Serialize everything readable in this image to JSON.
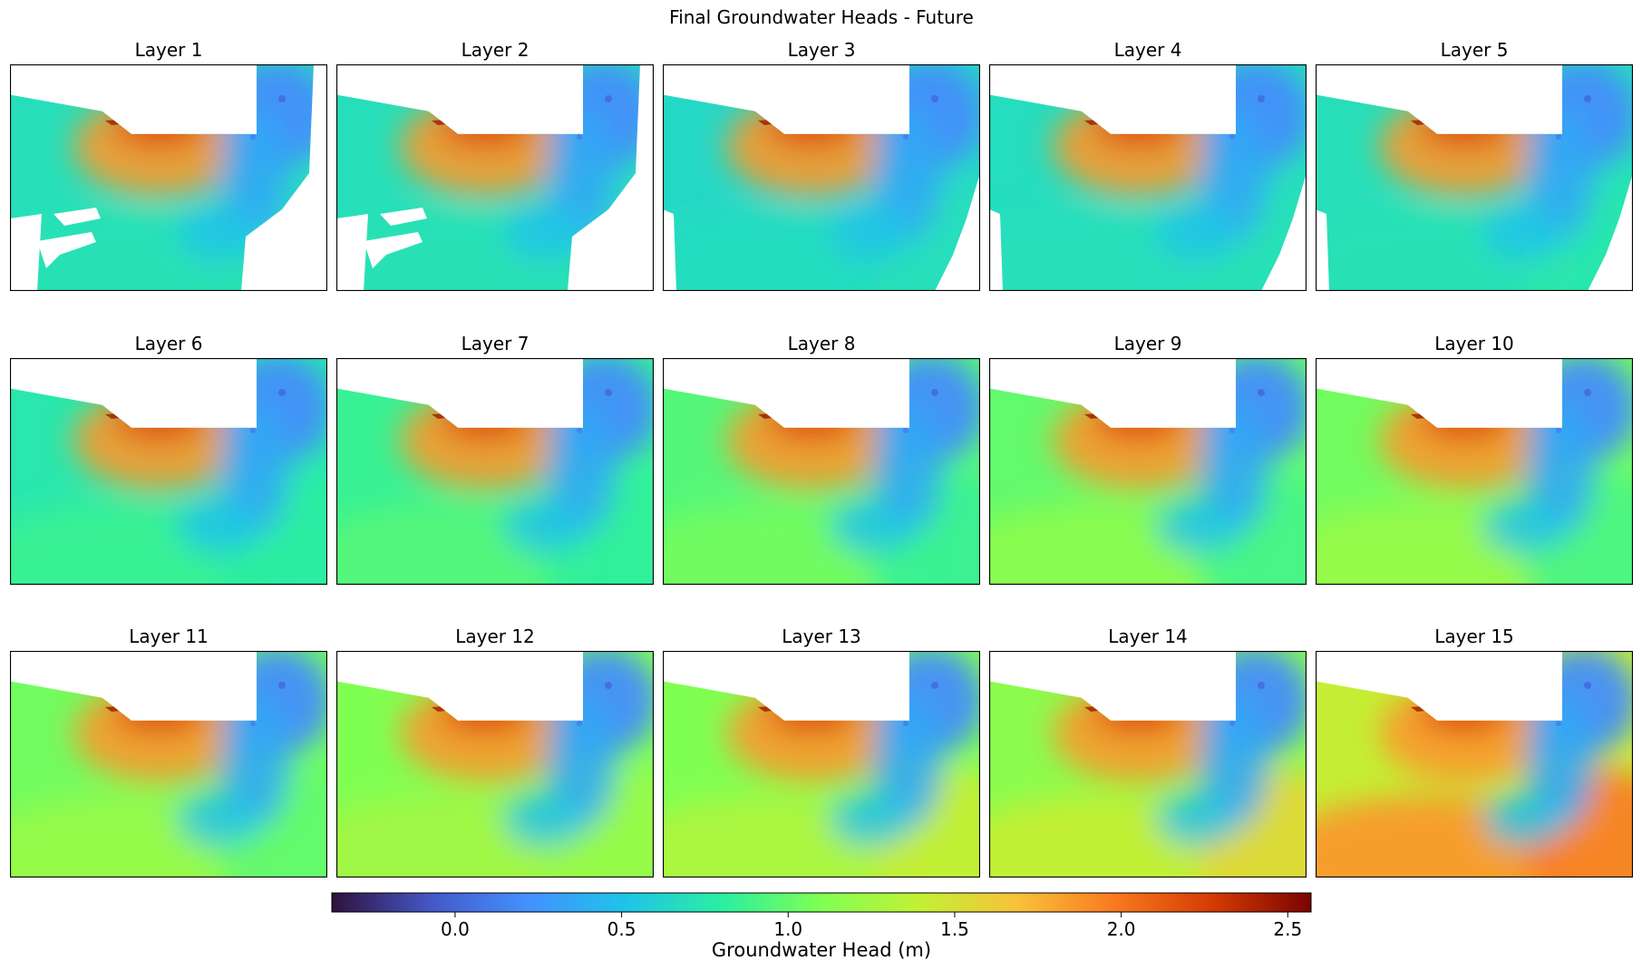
{
  "chart_data": {
    "type": "heatmap",
    "title": "Final Groundwater Heads - Future",
    "panels": [
      {
        "title": "Layer 1",
        "west_head": 0.7,
        "south_head": 0.72,
        "southeast_head": 0.72,
        "coverage": "sparse"
      },
      {
        "title": "Layer 2",
        "west_head": 0.7,
        "south_head": 0.72,
        "southeast_head": 0.72,
        "coverage": "sparse"
      },
      {
        "title": "Layer 3",
        "west_head": 0.65,
        "south_head": 0.68,
        "southeast_head": 0.7,
        "coverage": "partial"
      },
      {
        "title": "Layer 4",
        "west_head": 0.68,
        "south_head": 0.7,
        "southeast_head": 0.72,
        "coverage": "partial"
      },
      {
        "title": "Layer 5",
        "west_head": 0.7,
        "south_head": 0.72,
        "southeast_head": 0.75,
        "coverage": "partial"
      },
      {
        "title": "Layer 6",
        "west_head": 0.75,
        "south_head": 0.85,
        "southeast_head": 0.8,
        "coverage": "full"
      },
      {
        "title": "Layer 7",
        "west_head": 0.85,
        "south_head": 0.95,
        "southeast_head": 0.82,
        "coverage": "full"
      },
      {
        "title": "Layer 8",
        "west_head": 0.95,
        "south_head": 1.05,
        "southeast_head": 0.85,
        "coverage": "full"
      },
      {
        "title": "Layer 9",
        "west_head": 1.0,
        "south_head": 1.15,
        "southeast_head": 0.9,
        "coverage": "full"
      },
      {
        "title": "Layer 10",
        "west_head": 1.05,
        "south_head": 1.2,
        "southeast_head": 0.92,
        "coverage": "full"
      },
      {
        "title": "Layer 11",
        "west_head": 1.05,
        "south_head": 1.2,
        "southeast_head": 1.0,
        "coverage": "full"
      },
      {
        "title": "Layer 12",
        "west_head": 1.1,
        "south_head": 1.25,
        "southeast_head": 1.2,
        "coverage": "full"
      },
      {
        "title": "Layer 13",
        "west_head": 1.1,
        "south_head": 1.3,
        "southeast_head": 1.4,
        "coverage": "full"
      },
      {
        "title": "Layer 14",
        "west_head": 1.15,
        "south_head": 1.4,
        "southeast_head": 1.55,
        "coverage": "full"
      },
      {
        "title": "Layer 15",
        "west_head": 1.4,
        "south_head": 1.85,
        "southeast_head": 1.95,
        "coverage": "full"
      }
    ],
    "colorbar": {
      "label": "Groundwater Head (m)",
      "colormap": "turbo",
      "range": [
        -0.37,
        2.57
      ],
      "ticks": [
        0.0,
        0.5,
        1.0,
        1.5,
        2.0,
        2.5
      ],
      "tick_labels": [
        "0.0",
        "0.5",
        "1.0",
        "1.5",
        "2.0",
        "2.5"
      ]
    },
    "common_features": {
      "northern_peak_head": 2.45,
      "eastern_ridge_head": 0.3,
      "eastern_pit_head": 0.05
    }
  }
}
